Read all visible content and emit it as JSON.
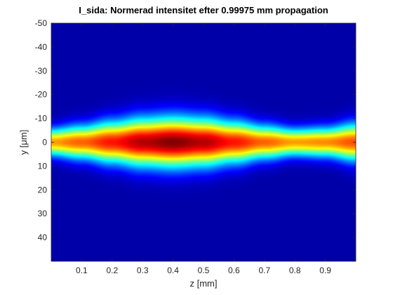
{
  "chart_data": {
    "type": "heatmap",
    "title": "I_sida: Normerad intensitet efter 0.99975 mm propagation",
    "xlabel": "z [mm]",
    "ylabel": "y [μm]",
    "xlim": [
      0,
      1
    ],
    "ylim": [
      -50,
      50
    ],
    "y_direction": "reversed",
    "x_ticks": [
      0.1,
      0.2,
      0.3,
      0.4,
      0.5,
      0.6,
      0.7,
      0.8,
      0.9
    ],
    "x_tick_labels": [
      "0.1",
      "0.2",
      "0.3",
      "0.4",
      "0.5",
      "0.6",
      "0.7",
      "0.8",
      "0.9"
    ],
    "y_ticks": [
      -50,
      -40,
      -30,
      -20,
      -10,
      0,
      10,
      20,
      30,
      40
    ],
    "y_tick_labels": [
      "-50",
      "-40",
      "-30",
      "-20",
      "-10",
      "0",
      "10",
      "20",
      "30",
      "40"
    ],
    "colormap": "jet",
    "intensity_range": [
      0,
      1
    ],
    "beam_profile": {
      "center_y": 0,
      "z": [
        0.0,
        0.1,
        0.2,
        0.3,
        0.4,
        0.5,
        0.6,
        0.7,
        0.8,
        0.9,
        1.0
      ],
      "half_width_um": [
        7,
        8.5,
        10.5,
        12,
        12.5,
        12,
        10.5,
        8.5,
        7,
        7.5,
        9.5
      ],
      "peak_intensity": [
        0.72,
        0.78,
        0.86,
        0.95,
        1.0,
        0.95,
        0.86,
        0.78,
        0.72,
        0.74,
        0.8
      ]
    },
    "grid": false,
    "legend": "none"
  }
}
